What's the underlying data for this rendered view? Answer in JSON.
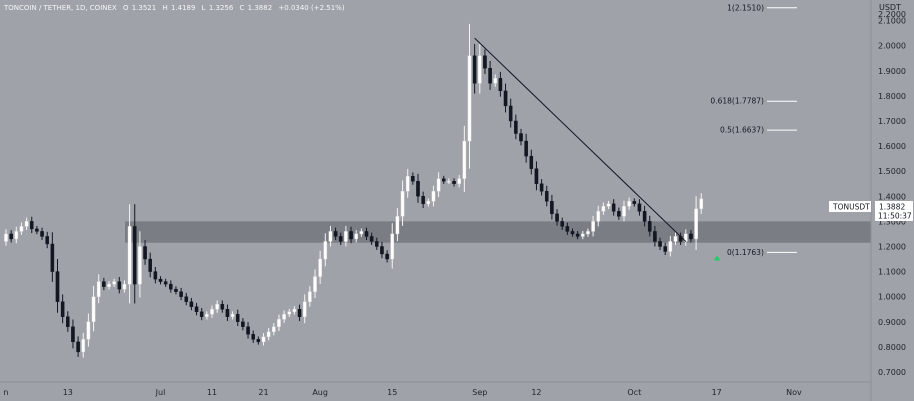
{
  "header": {
    "title": "TONCOIN / TETHER, 1D, COINEX",
    "o_label": "O",
    "o_value": "1.3521",
    "h_label": "H",
    "h_value": "1.4189",
    "l_label": "L",
    "l_value": "1.3256",
    "c_label": "C",
    "c_value": "1.3882",
    "change": "+0.0340 (+2.51%)"
  },
  "colors": {
    "background": "#9fa3a9",
    "up_candle": "#ffffff",
    "down_candle": "#131722",
    "support_zone": "#6e7278",
    "trendline": "#131722",
    "fib_line": "#ffffff",
    "arrow": "#26c86b"
  },
  "price_tag": {
    "symbol": "TONUSDT",
    "price": "1.3882",
    "countdown": "11:50:37"
  },
  "chart_data": {
    "type": "candlestick",
    "title": "TONCOIN / TETHER, 1D, COINEX",
    "y_unit": "USDT",
    "ylim": [
      0.68,
      2.17
    ],
    "y_ticks": [
      "2.2000",
      "2.1000",
      "2.0000",
      "1.9000",
      "1.8000",
      "1.7000",
      "1.6000",
      "1.5000",
      "1.4000",
      "1.3000",
      "1.2000",
      "1.1000",
      "1.0000",
      "0.9000",
      "0.8000",
      "0.7000"
    ],
    "x_ticks": [
      {
        "label": "n",
        "index": -0.5
      },
      {
        "label": "13",
        "index": 12
      },
      {
        "label": "Jul",
        "index": 30
      },
      {
        "label": "11",
        "index": 40
      },
      {
        "label": "21",
        "index": 50
      },
      {
        "label": "Aug",
        "index": 61
      },
      {
        "label": "15",
        "index": 75
      },
      {
        "label": "Sep",
        "index": 92
      },
      {
        "label": "12",
        "index": 103
      },
      {
        "label": "Oct",
        "index": 122
      },
      {
        "label": "17",
        "index": 138
      },
      {
        "label": "Nov",
        "index": 153
      }
    ],
    "candles_close": [
      1.25,
      1.23,
      1.26,
      1.28,
      1.3,
      1.27,
      1.26,
      1.24,
      1.21,
      1.1,
      0.98,
      0.92,
      0.88,
      0.82,
      0.78,
      0.83,
      0.9,
      1.0,
      1.06,
      1.04,
      1.05,
      1.06,
      1.03,
      1.05,
      1.28,
      1.05,
      1.2,
      1.15,
      1.1,
      1.07,
      1.06,
      1.05,
      1.03,
      1.02,
      1.0,
      0.98,
      0.96,
      0.94,
      0.92,
      0.93,
      0.95,
      0.97,
      0.95,
      0.92,
      0.93,
      0.9,
      0.88,
      0.85,
      0.83,
      0.82,
      0.84,
      0.86,
      0.88,
      0.91,
      0.93,
      0.94,
      0.95,
      0.92,
      0.98,
      1.02,
      1.08,
      1.15,
      1.22,
      1.26,
      1.24,
      1.22,
      1.26,
      1.23,
      1.25,
      1.26,
      1.24,
      1.22,
      1.2,
      1.17,
      1.15,
      1.25,
      1.32,
      1.42,
      1.48,
      1.46,
      1.4,
      1.37,
      1.38,
      1.42,
      1.47,
      1.46,
      1.46,
      1.45,
      1.47,
      1.62,
      1.96,
      1.85,
      1.96,
      1.91,
      1.85,
      1.87,
      1.82,
      1.76,
      1.7,
      1.65,
      1.62,
      1.56,
      1.51,
      1.45,
      1.42,
      1.38,
      1.33,
      1.3,
      1.28,
      1.26,
      1.25,
      1.24,
      1.25,
      1.26,
      1.3,
      1.34,
      1.36,
      1.37,
      1.34,
      1.32,
      1.36,
      1.38,
      1.37,
      1.34,
      1.3,
      1.26,
      1.22,
      1.2,
      1.18,
      1.22,
      1.24,
      1.22,
      1.25,
      1.23,
      1.35,
      1.39
    ],
    "first_open": 1.22,
    "fibonacci": [
      {
        "label": "1(2.1510)",
        "value": 2.151
      },
      {
        "label": "0.618(1.7787)",
        "value": 1.7787
      },
      {
        "label": "0.5(1.6637)",
        "value": 1.6637
      },
      {
        "label": "0(1.1763)",
        "value": 1.1763
      }
    ],
    "support_zone": [
      1.215,
      1.3
    ],
    "trendline": [
      {
        "index": 91,
        "value": 2.03
      },
      {
        "index": 132,
        "value": 1.22
      }
    ]
  }
}
